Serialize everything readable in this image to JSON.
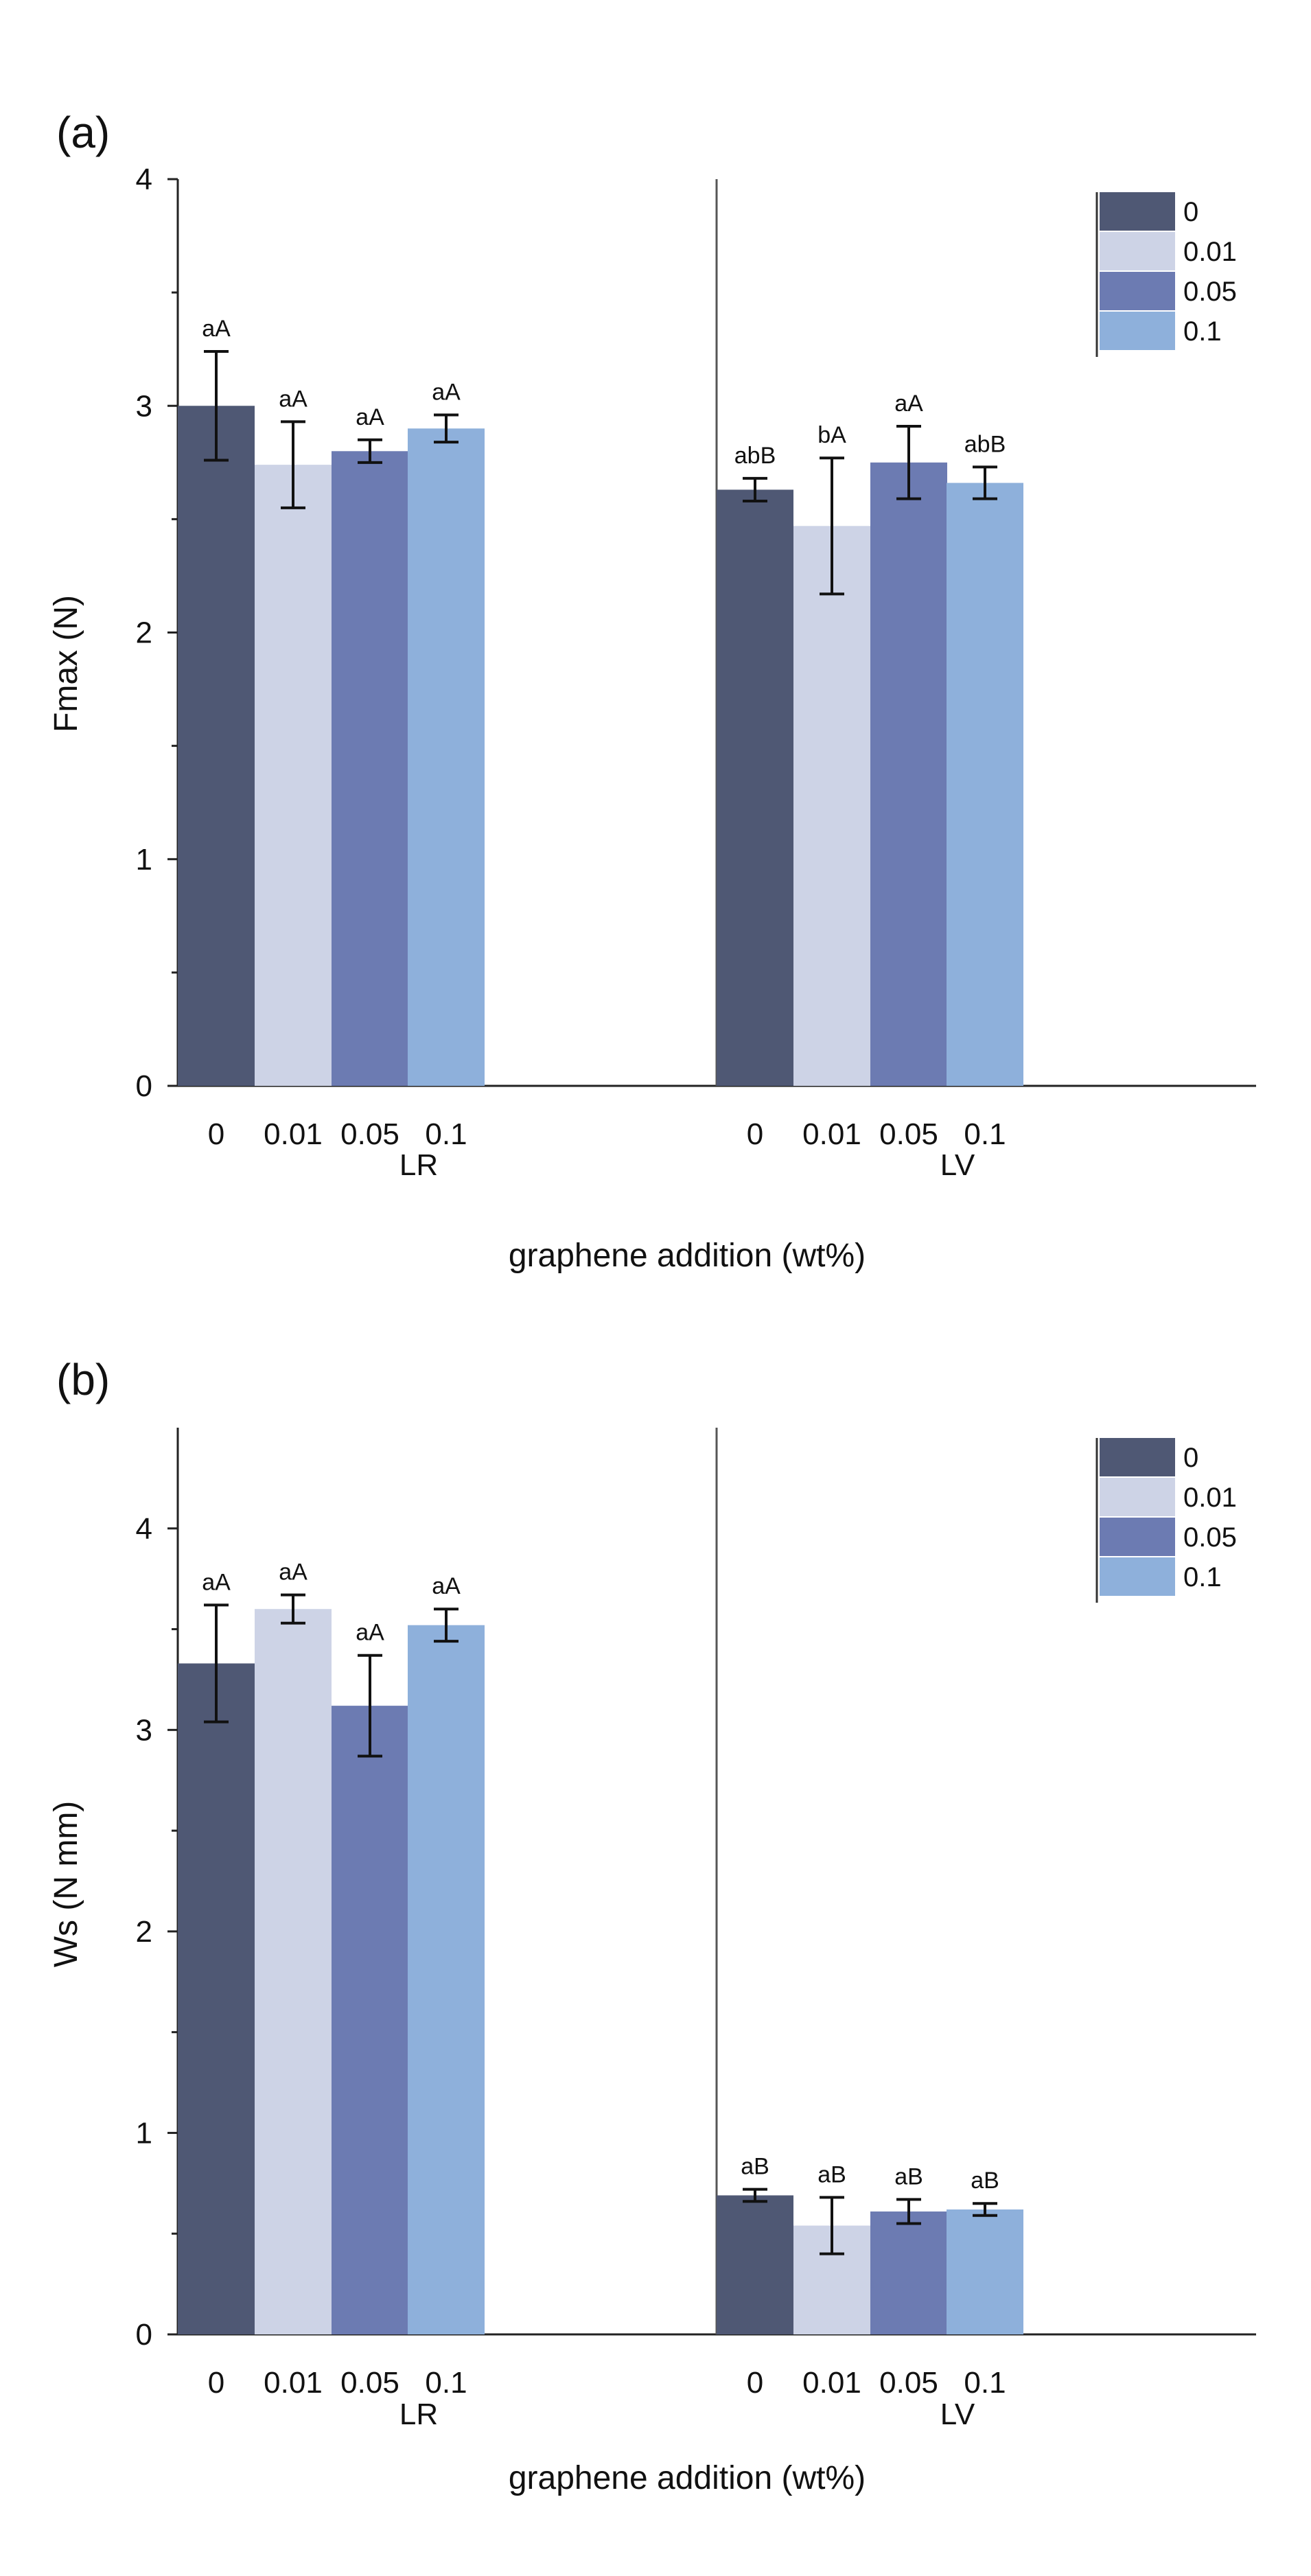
{
  "figure": {
    "xlabel": "graphene addition (wt%)",
    "groups": [
      "LR",
      "LV"
    ],
    "categories": [
      "0",
      "0.01",
      "0.05",
      "0.1"
    ],
    "series_colors": [
      "#4f5874",
      "#cdd3e6",
      "#6c7bb2",
      "#8eb0db"
    ],
    "legend": [
      "0",
      "0.01",
      "0.05",
      "0.1"
    ]
  },
  "chart_data": [
    {
      "type": "bar",
      "panel": "(a)",
      "ylabel": "Fmax (N)",
      "ylim": [
        0,
        4
      ],
      "yticks": [
        "0",
        "1",
        "2",
        "3",
        "4"
      ],
      "groups": [
        "LR",
        "LV"
      ],
      "categories": [
        "0",
        "0.01",
        "0.05",
        "0.1"
      ],
      "series": [
        {
          "group": "LR",
          "values": [
            3.0,
            2.74,
            2.8,
            2.9
          ],
          "errors": [
            0.24,
            0.19,
            0.05,
            0.06
          ],
          "labels": [
            "aA",
            "aA",
            "aA",
            "aA"
          ]
        },
        {
          "group": "LV",
          "values": [
            2.63,
            2.47,
            2.75,
            2.66
          ],
          "errors": [
            0.05,
            0.3,
            0.16,
            0.07
          ],
          "labels": [
            "abB",
            "bA",
            "aA",
            "abB"
          ]
        }
      ],
      "legend_position": "top-right"
    },
    {
      "type": "bar",
      "panel": "(b)",
      "ylabel": "Ws (N mm)",
      "ylim": [
        0,
        4.5
      ],
      "yticks": [
        "0",
        "1",
        "2",
        "3",
        "4"
      ],
      "groups": [
        "LR",
        "LV"
      ],
      "categories": [
        "0",
        "0.01",
        "0.05",
        "0.1"
      ],
      "series": [
        {
          "group": "LR",
          "values": [
            3.33,
            3.6,
            3.12,
            3.52
          ],
          "errors": [
            0.29,
            0.07,
            0.25,
            0.08
          ],
          "labels": [
            "aA",
            "aA",
            "aA",
            "aA"
          ]
        },
        {
          "group": "LV",
          "values": [
            0.69,
            0.54,
            0.61,
            0.62
          ],
          "errors": [
            0.03,
            0.14,
            0.06,
            0.03
          ],
          "labels": [
            "aB",
            "aB",
            "aB",
            "aB"
          ]
        }
      ],
      "legend_position": "top-right"
    }
  ]
}
